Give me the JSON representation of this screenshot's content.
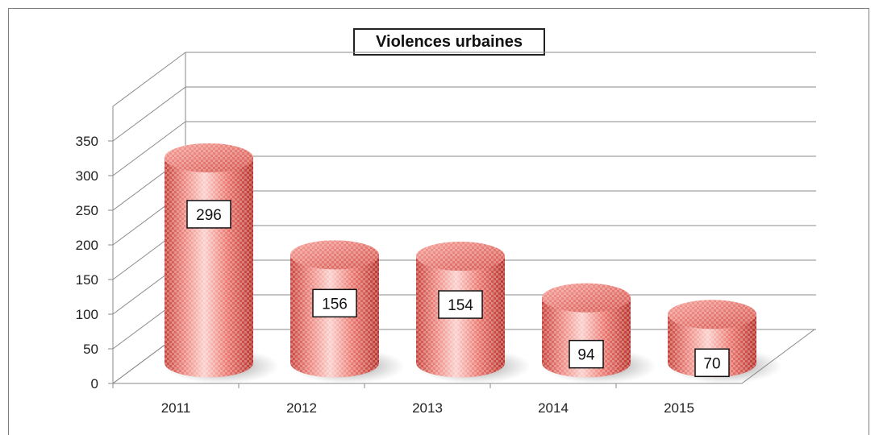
{
  "chart_data": {
    "type": "bar",
    "title": "Violences urbaines",
    "categories": [
      "2011",
      "2012",
      "2013",
      "2014",
      "2015"
    ],
    "values": [
      296,
      156,
      154,
      94,
      70
    ],
    "data_labels": [
      "296",
      "156",
      "154",
      "94",
      "70"
    ],
    "y_ticks": [
      "0",
      "50",
      "100",
      "150",
      "200",
      "250",
      "300",
      "350"
    ],
    "ylim": [
      0,
      350
    ],
    "xlabel": "",
    "ylabel": "",
    "grid": true,
    "legend": "none",
    "bar_style": "3d-cylinder",
    "bar_color": "#e8736b"
  }
}
